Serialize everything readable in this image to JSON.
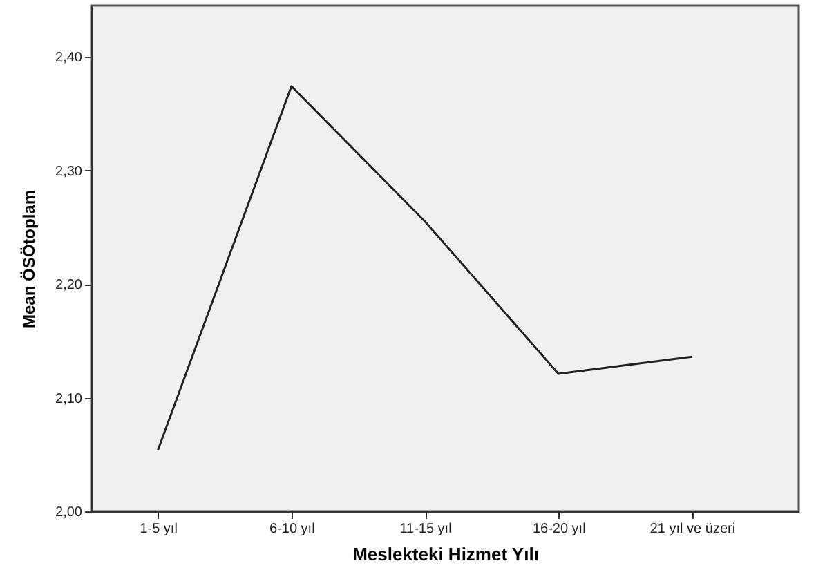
{
  "chart_data": {
    "type": "line",
    "xlabel": "Meslekteki Hizmet Yılı",
    "ylabel": "Mean ÖSÖtoplam",
    "categories": [
      "1-5 yıl",
      "6-10 yıl",
      "11-15 yıl",
      "16-20 yıl",
      "21 yıl ve üzeri"
    ],
    "series": [
      {
        "color": "#222222",
        "values": [
          2.054,
          2.374,
          2.255,
          2.121,
          2.136
        ]
      }
    ],
    "ylim": [
      2,
      2.445
    ],
    "yticks": [
      {
        "value": 2,
        "label": "2,00"
      },
      {
        "value": 2.1,
        "label": "2,10"
      },
      {
        "value": 2.2,
        "label": "2,20"
      },
      {
        "value": 2.3,
        "label": "2,30"
      },
      {
        "value": 2.4,
        "label": "2,40"
      }
    ],
    "grid": false,
    "marker": "none",
    "line_style": "solid"
  }
}
